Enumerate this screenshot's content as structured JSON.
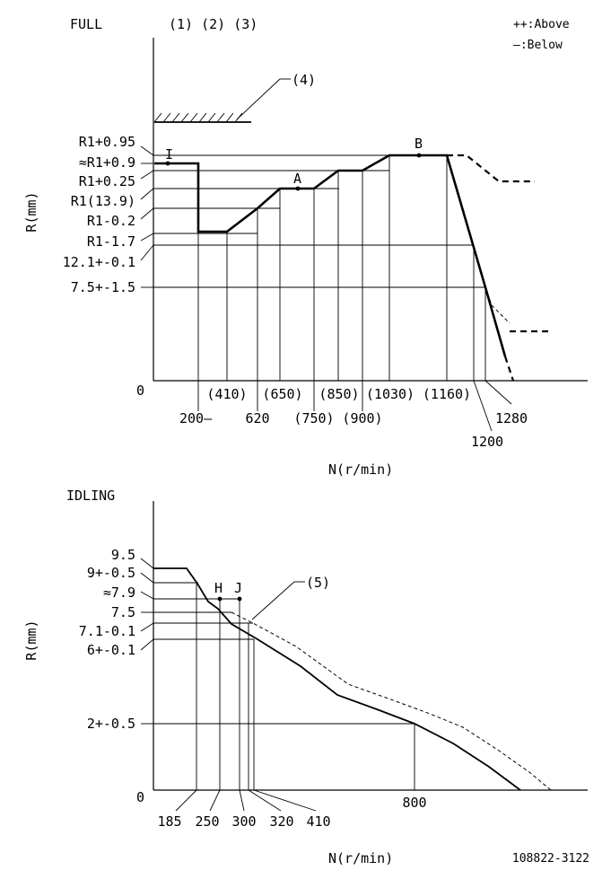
{
  "full": {
    "title": "FULL",
    "conditions": "(1) (2) (3)",
    "legend": {
      "above": "++:Above",
      "below": "—:Below"
    },
    "callout4": "(4)",
    "y_axis_label": "R(mm)",
    "x_axis_label": "N(r/min)",
    "origin": "0",
    "y_labels": [
      "R1+0.95",
      "≈R1+0.9",
      "R1+0.25",
      "R1(13.9)",
      "R1-0.2",
      "R1-1.7",
      "12.1+-0.1",
      "7.5+-1.5"
    ],
    "x_labels_upper": [
      "(410)",
      "(650)",
      "(850)",
      "(1030)",
      "(1160)"
    ],
    "x_labels_lower": [
      "200—",
      "620",
      "(750)",
      "(900)"
    ],
    "x_label_1200": "1200",
    "x_label_1280": "1280",
    "points": {
      "I": "I",
      "A": "A",
      "B": "B"
    }
  },
  "idling": {
    "title": "IDLING",
    "callout5": "(5)",
    "y_axis_label": "R(mm)",
    "x_axis_label": "N(r/min)",
    "origin": "0",
    "y_labels": [
      "9.5",
      "9+-0.5",
      "≈7.9",
      "7.5",
      "7.1-0.1",
      "6+-0.1",
      "2+-0.5"
    ],
    "x_labels": [
      "185",
      "250",
      "300",
      "320",
      "410"
    ],
    "x_label_800": "800",
    "points": {
      "H": "H",
      "J": "J"
    }
  },
  "part_number": "108822-3122"
}
